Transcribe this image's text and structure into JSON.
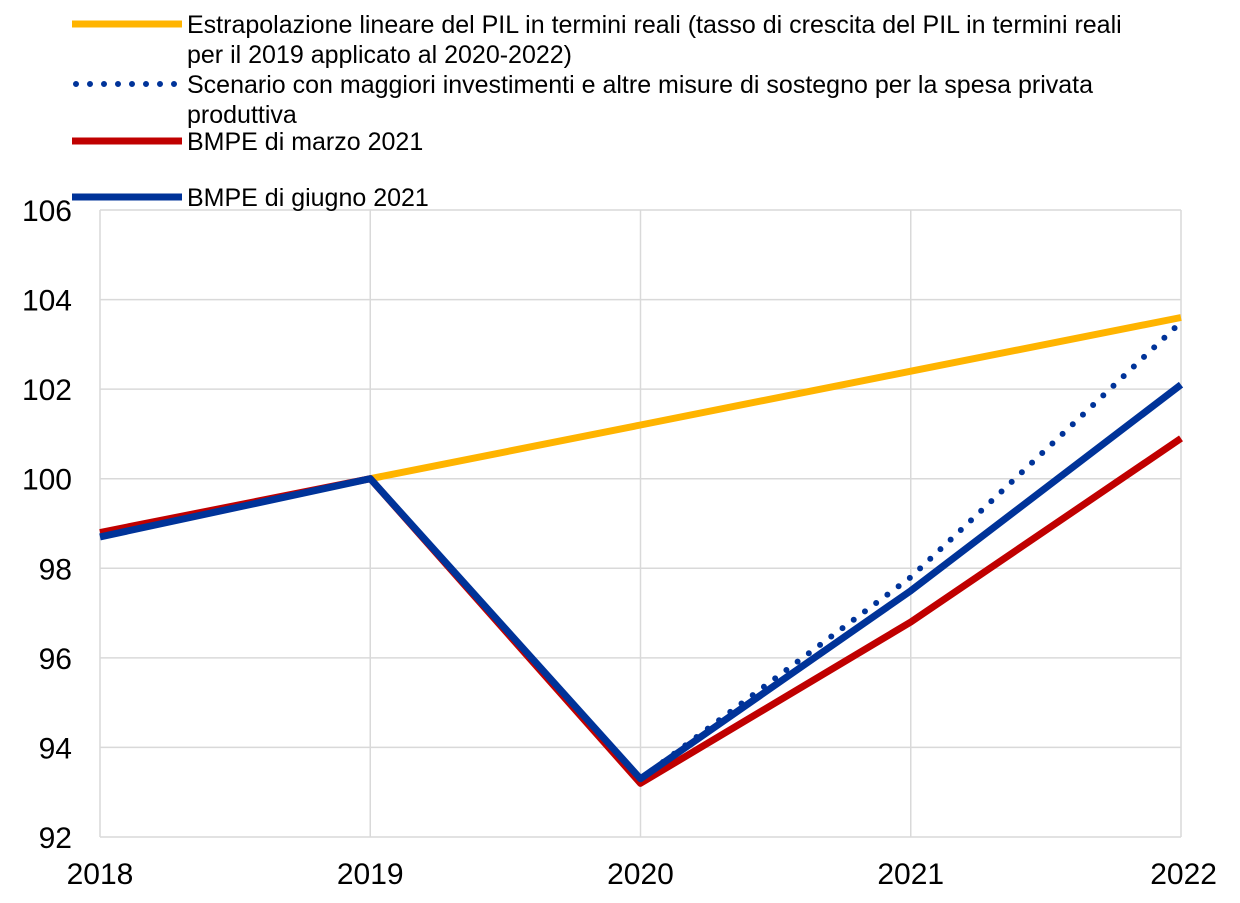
{
  "chart_data": {
    "type": "line",
    "title": "",
    "xlabel": "",
    "ylabel": "",
    "x": [
      2018,
      2019,
      2020,
      2021,
      2022
    ],
    "xlim": [
      2018,
      2022
    ],
    "ylim": [
      92,
      106
    ],
    "yticks": [
      92,
      94,
      96,
      98,
      100,
      102,
      104,
      106
    ],
    "grid": true,
    "legend_position": "top",
    "series": [
      {
        "name": "Estrapolazione lineare del PIL in termini reali (tasso di crescita del PIL in termini reali per il 2019 applicato al 2020-2022)",
        "name_lines": [
          "Estrapolazione lineare del PIL in termini reali (tasso di crescita del PIL in termini reali",
          "per il 2019 applicato al 2020-2022)"
        ],
        "x": [
          2019,
          2020,
          2021,
          2022
        ],
        "values": [
          100.0,
          101.2,
          102.4,
          103.6
        ],
        "color": "#ffb400",
        "style": "solid"
      },
      {
        "name": "Scenario con maggiori investimenti e altre misure di sostegno per la spesa privata produttiva",
        "name_lines": [
          "Scenario con maggiori investimenti e altre misure di sostegno per la spesa privata",
          "produttiva"
        ],
        "x": [
          2020,
          2021,
          2022
        ],
        "values": [
          93.3,
          97.8,
          103.5
        ],
        "color": "#003399",
        "style": "dotted"
      },
      {
        "name": "BMPE di marzo 2021",
        "name_lines": [
          "BMPE di marzo 2021"
        ],
        "x": [
          2018,
          2019,
          2020,
          2021,
          2022
        ],
        "values": [
          98.8,
          100.0,
          93.2,
          96.8,
          100.9
        ],
        "color": "#c00000",
        "style": "solid"
      },
      {
        "name": "BMPE di giugno 2021",
        "name_lines": [
          "BMPE di giugno 2021"
        ],
        "x": [
          2018,
          2019,
          2020,
          2021,
          2022
        ],
        "values": [
          98.7,
          100.0,
          93.3,
          97.5,
          102.1
        ],
        "color": "#003399",
        "style": "solid"
      }
    ]
  }
}
